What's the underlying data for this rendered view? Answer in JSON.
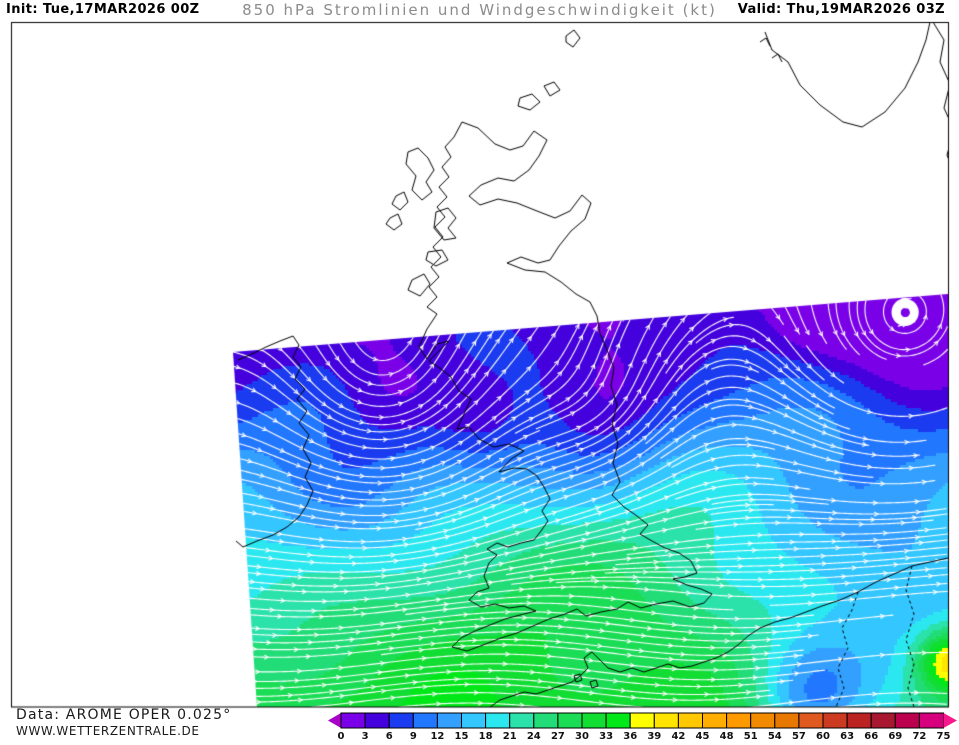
{
  "header": {
    "init_label": "Init: Tue,17MAR2026 00Z",
    "title": "850 hPa Stromlinien und Windgeschwindigkeit (kt)",
    "valid_label": "Valid: Thu,19MAR2026 03Z"
  },
  "credits": {
    "data_source": "Data: AROME OPER 0.025°",
    "website": "WWW.WETTERZENTRALE.DE"
  },
  "scale": {
    "unit": "kt",
    "labels": [
      "0",
      "3",
      "6",
      "9",
      "12",
      "15",
      "18",
      "21",
      "24",
      "27",
      "30",
      "33",
      "36",
      "39",
      "42",
      "45",
      "48",
      "51",
      "54",
      "57",
      "60",
      "63",
      "66",
      "69",
      "72",
      "75"
    ],
    "colors": [
      "#7A00E8",
      "#4400DD",
      "#1A3BF0",
      "#2277FF",
      "#33A0FF",
      "#33C6FF",
      "#2BE8F0",
      "#2BE2AA",
      "#22DD77",
      "#1ADD55",
      "#11DD33",
      "#00E818",
      "#FFFF00",
      "#FFE400",
      "#FFC800",
      "#FFAE00",
      "#FF9900",
      "#F28A00",
      "#E87800",
      "#E05A20",
      "#CC3A22",
      "#BB2222",
      "#A81830",
      "#BB004E",
      "#D6007E"
    ],
    "left_arrow_color": "#A800C8",
    "right_arrow_color": "#F5198C",
    "tick_label_color": "#111111",
    "segment_border_color": "#000000"
  },
  "map": {
    "coastline_color": "#000000",
    "streamline_color": "#ffffff",
    "frame_color": "#000000",
    "background_color": "#ffffff"
  }
}
